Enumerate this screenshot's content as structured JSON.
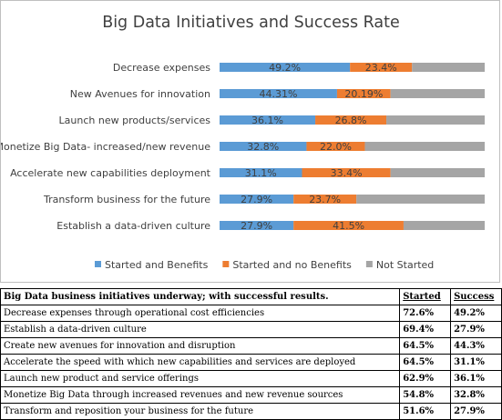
{
  "chart_data": {
    "type": "bar",
    "orientation": "horizontal",
    "stacked": true,
    "title": "Big Data Initiatives and Success Rate",
    "categories": [
      "Decrease expenses",
      "New Avenues for innovation",
      "Launch new products/services",
      "Monetize Big Data- increased/new revenue",
      "Accelerate new capabilities deployment",
      "Transform business for the future",
      "Establish  a data-driven culture"
    ],
    "series": [
      {
        "name": "Started and Benefits",
        "color": "#5b9bd5",
        "values": [
          49.2,
          44.31,
          36.1,
          32.8,
          31.1,
          27.9,
          27.9
        ],
        "labels": [
          "49.2%",
          "44.31%",
          "36.1%",
          "32.8%",
          "31.1%",
          "27.9%",
          "27.9%"
        ]
      },
      {
        "name": "Started and no Benefits",
        "color": "#ed7d31",
        "values": [
          23.4,
          20.19,
          26.8,
          22.0,
          33.4,
          23.7,
          41.5
        ],
        "labels": [
          "23.4%",
          "20.19%",
          "26.8%",
          "22.0%",
          "33.4%",
          "23.7%",
          "41.5%"
        ]
      },
      {
        "name": "Not Started",
        "color": "#a5a5a5",
        "values": [
          27.4,
          35.5,
          37.1,
          45.2,
          35.5,
          48.4,
          30.6
        ],
        "labels": [
          "",
          "",
          "",
          "",
          "",
          "",
          ""
        ]
      }
    ],
    "xlim": [
      0,
      100
    ],
    "legend_position": "bottom",
    "grid": false
  },
  "table": {
    "header": {
      "initiative": "Big Data business initiatives underway; with successful results.",
      "started": "Started",
      "success": "Success"
    },
    "rows": [
      {
        "initiative": "Decrease expenses through operational cost efficiencies",
        "started": "72.6%",
        "success": "49.2%"
      },
      {
        "initiative": "Establish a data-driven culture",
        "started": "69.4%",
        "success": "27.9%"
      },
      {
        "initiative": "Create new avenues for innovation and disruption",
        "started": "64.5%",
        "success": "44.3%"
      },
      {
        "initiative": "Accelerate the speed with which new capabilities and services are deployed",
        "started": "64.5%",
        "success": "31.1%"
      },
      {
        "initiative": "Launch new product and service offerings",
        "started": "62.9%",
        "success": "36.1%"
      },
      {
        "initiative": "Monetize Big Data through increased revenues and new revenue sources",
        "started": "54.8%",
        "success": "32.8%"
      },
      {
        "initiative": "Transform and reposition your business for the future",
        "started": "51.6%",
        "success": "27.9%"
      }
    ]
  }
}
